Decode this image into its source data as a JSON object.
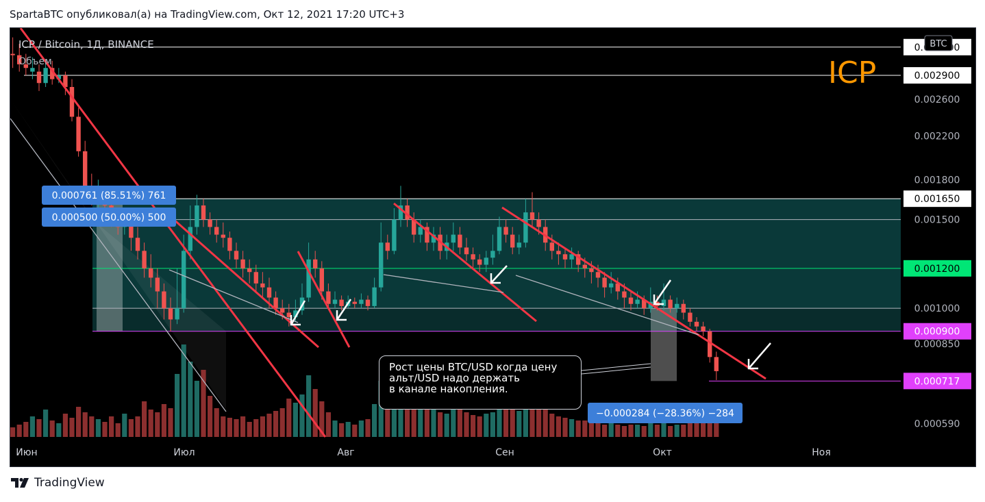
{
  "header": {
    "text": "SpartaBTC опубликовал(а) на TradingView.com, Окт 12, 2021 17:20 UTC+3"
  },
  "footer": {
    "brand": "TradingView",
    "logo_icon": "tradingview-logo-icon"
  },
  "chart": {
    "symbol_line": "ICP / Bitcoin, 1Д, BINANCE",
    "volume_label": "Объем",
    "currency_badge": "BTC",
    "big_label": "ICP",
    "measure_up": [
      "0.000761 (85.51%) 761",
      "0.000500 (50.00%) 500"
    ],
    "measure_down": "−0.000284 (−28.36%) −284",
    "annotation_lines": [
      "Рост цены BTC/USD когда цену",
      "альт/USD надо держать",
      "в канале накопления."
    ]
  },
  "colors": {
    "background": "#000000",
    "up_candle": "#26a69a",
    "down_candle": "#ef5350",
    "trendline": "#f23645",
    "channel_fill": "#0c3b3b",
    "magenta": "#e040fb",
    "green_label": "#00e676",
    "orange_text": "#ff9800",
    "measure_box": "#3d7fd9"
  },
  "chart_data": {
    "type": "candlestick",
    "title": "ICP / Bitcoin, 1Д, BINANCE",
    "x_ticks": [
      "Июн",
      "Июл",
      "Авг",
      "Сен",
      "Окт",
      "Ноя"
    ],
    "y_ticks": [
      "0.003300",
      "0.002900",
      "0.002600",
      "0.002200",
      "0.001800",
      "0.001650",
      "0.001500",
      "0.001200",
      "0.001000",
      "0.000900",
      "0.000850",
      "0.000717",
      "0.000590"
    ],
    "y_scale": "log",
    "ylim": [
      0.00055,
      0.0036
    ],
    "key_levels": [
      {
        "value": 0.0033,
        "label": "0.003300",
        "style": "white"
      },
      {
        "value": 0.0029,
        "label": "0.002900",
        "style": "white"
      },
      {
        "value": 0.00165,
        "label": "0.001650",
        "style": "white"
      },
      {
        "value": 0.0015,
        "label": "",
        "style": "grey"
      },
      {
        "value": 0.0012,
        "label": "0.001200",
        "style": "green"
      },
      {
        "value": 0.001,
        "label": "",
        "style": "grey"
      },
      {
        "value": 0.0009,
        "label": "0.000900",
        "style": "magenta"
      },
      {
        "value": 0.000717,
        "label": "0.000717",
        "style": "magenta"
      }
    ],
    "candles": [
      [
        1,
        0.0032,
        0.00318,
        0.00345,
        0.003,
        0
      ],
      [
        2,
        0.00318,
        0.00305,
        0.00335,
        0.00295,
        0
      ],
      [
        3,
        0.00305,
        0.003,
        0.0032,
        0.0029,
        0
      ],
      [
        4,
        0.003,
        0.00295,
        0.00315,
        0.00285,
        1
      ],
      [
        5,
        0.00295,
        0.0028,
        0.00305,
        0.0027,
        0
      ],
      [
        6,
        0.0028,
        0.003,
        0.0031,
        0.00275,
        1
      ],
      [
        7,
        0.003,
        0.00285,
        0.0031,
        0.00278,
        0
      ],
      [
        8,
        0.00285,
        0.0029,
        0.003,
        0.0028,
        1
      ],
      [
        9,
        0.0029,
        0.00275,
        0.00295,
        0.00265,
        0
      ],
      [
        10,
        0.00275,
        0.0024,
        0.00285,
        0.00235,
        0
      ],
      [
        11,
        0.0024,
        0.00205,
        0.0025,
        0.002,
        0
      ],
      [
        12,
        0.00205,
        0.00175,
        0.00215,
        0.0017,
        0
      ],
      [
        13,
        0.00175,
        0.00165,
        0.00185,
        0.0016,
        0
      ],
      [
        14,
        0.00165,
        0.0017,
        0.0018,
        0.00158,
        1
      ],
      [
        15,
        0.0017,
        0.0016,
        0.00175,
        0.0015,
        0
      ],
      [
        16,
        0.0016,
        0.0015,
        0.0017,
        0.00145,
        0
      ],
      [
        17,
        0.0015,
        0.00145,
        0.00158,
        0.0014,
        0
      ],
      [
        18,
        0.00145,
        0.00148,
        0.00155,
        0.0014,
        1
      ],
      [
        19,
        0.00148,
        0.00138,
        0.00152,
        0.0013,
        0
      ],
      [
        20,
        0.00138,
        0.0013,
        0.00145,
        0.00125,
        0
      ],
      [
        21,
        0.0013,
        0.0012,
        0.00135,
        0.00115,
        0
      ],
      [
        22,
        0.0012,
        0.00115,
        0.00128,
        0.0011,
        0
      ],
      [
        23,
        0.00115,
        0.00108,
        0.0012,
        0.001,
        0
      ],
      [
        24,
        0.00108,
        0.001,
        0.00112,
        0.00095,
        0
      ],
      [
        25,
        0.001,
        0.00095,
        0.00105,
        0.0009,
        0
      ],
      [
        26,
        0.00095,
        0.001,
        0.0012,
        0.00093,
        1
      ],
      [
        27,
        0.001,
        0.0013,
        0.0014,
        0.00098,
        1
      ],
      [
        28,
        0.0013,
        0.00145,
        0.0016,
        0.00125,
        1
      ],
      [
        29,
        0.00145,
        0.0016,
        0.00168,
        0.0014,
        1
      ],
      [
        30,
        0.0016,
        0.0015,
        0.00165,
        0.00145,
        0
      ],
      [
        31,
        0.0015,
        0.00145,
        0.00155,
        0.0014,
        0
      ],
      [
        32,
        0.00145,
        0.0014,
        0.0015,
        0.00135,
        0
      ],
      [
        33,
        0.0014,
        0.00138,
        0.00148,
        0.00132,
        0
      ],
      [
        34,
        0.00138,
        0.0013,
        0.00142,
        0.00125,
        0
      ],
      [
        35,
        0.0013,
        0.00125,
        0.00135,
        0.0012,
        0
      ],
      [
        36,
        0.00125,
        0.0012,
        0.0013,
        0.00115,
        0
      ],
      [
        37,
        0.0012,
        0.00118,
        0.00125,
        0.00112,
        0
      ],
      [
        38,
        0.00118,
        0.00112,
        0.00122,
        0.00108,
        0
      ],
      [
        39,
        0.00112,
        0.0011,
        0.00118,
        0.00105,
        0
      ],
      [
        40,
        0.0011,
        0.00105,
        0.00115,
        0.001,
        0
      ],
      [
        41,
        0.00105,
        0.001,
        0.00108,
        0.00097,
        0
      ],
      [
        42,
        0.001,
        0.00098,
        0.00104,
        0.00095,
        0
      ],
      [
        43,
        0.00098,
        0.00096,
        0.00102,
        0.00092,
        0
      ],
      [
        44,
        0.00096,
        0.00099,
        0.00104,
        0.00094,
        1
      ],
      [
        45,
        0.00099,
        0.00105,
        0.00112,
        0.00097,
        1
      ],
      [
        46,
        0.00105,
        0.00125,
        0.00135,
        0.00103,
        1
      ],
      [
        47,
        0.00125,
        0.0012,
        0.0013,
        0.00115,
        0
      ],
      [
        48,
        0.0012,
        0.00108,
        0.00124,
        0.00104,
        0
      ],
      [
        49,
        0.00108,
        0.00102,
        0.00112,
        0.001,
        0
      ],
      [
        50,
        0.00102,
        0.00104,
        0.00108,
        0.001,
        1
      ],
      [
        51,
        0.00104,
        0.00101,
        0.00106,
        0.00099,
        0
      ],
      [
        52,
        0.00101,
        0.00103,
        0.00106,
        0.001,
        1
      ],
      [
        53,
        0.00103,
        0.00102,
        0.00105,
        0.001,
        0
      ],
      [
        54,
        0.00102,
        0.00104,
        0.00107,
        0.001,
        1
      ],
      [
        55,
        0.00104,
        0.00101,
        0.00106,
        0.00099,
        0
      ],
      [
        56,
        0.00101,
        0.0011,
        0.00115,
        0.001,
        1
      ],
      [
        57,
        0.0011,
        0.00135,
        0.00148,
        0.00108,
        1
      ],
      [
        58,
        0.00135,
        0.0013,
        0.0014,
        0.00125,
        0
      ],
      [
        59,
        0.0013,
        0.0015,
        0.00158,
        0.00128,
        1
      ],
      [
        60,
        0.0015,
        0.0016,
        0.00175,
        0.00145,
        1
      ],
      [
        61,
        0.0016,
        0.0015,
        0.00165,
        0.00145,
        0
      ],
      [
        62,
        0.0015,
        0.0014,
        0.00155,
        0.00135,
        0
      ],
      [
        63,
        0.0014,
        0.00145,
        0.0015,
        0.00135,
        1
      ],
      [
        64,
        0.00145,
        0.00135,
        0.00148,
        0.0013,
        0
      ],
      [
        65,
        0.00135,
        0.0014,
        0.00145,
        0.0013,
        1
      ],
      [
        66,
        0.0014,
        0.0013,
        0.00145,
        0.00125,
        0
      ],
      [
        67,
        0.0013,
        0.00135,
        0.0014,
        0.00125,
        1
      ],
      [
        68,
        0.00135,
        0.0014,
        0.00148,
        0.0013,
        1
      ],
      [
        69,
        0.0014,
        0.00132,
        0.00145,
        0.00128,
        0
      ],
      [
        70,
        0.00132,
        0.00128,
        0.00138,
        0.00124,
        0
      ],
      [
        71,
        0.00128,
        0.00125,
        0.00132,
        0.0012,
        0
      ],
      [
        72,
        0.00125,
        0.00122,
        0.00128,
        0.00118,
        0
      ],
      [
        73,
        0.00122,
        0.00126,
        0.0013,
        0.00118,
        1
      ],
      [
        74,
        0.00126,
        0.0013,
        0.0014,
        0.00122,
        1
      ],
      [
        75,
        0.0013,
        0.00145,
        0.00152,
        0.00128,
        1
      ],
      [
        76,
        0.00145,
        0.0014,
        0.0015,
        0.00135,
        0
      ],
      [
        77,
        0.0014,
        0.00132,
        0.00145,
        0.00128,
        0
      ],
      [
        78,
        0.00132,
        0.00135,
        0.0014,
        0.00128,
        1
      ],
      [
        79,
        0.00135,
        0.00155,
        0.00165,
        0.00132,
        1
      ],
      [
        80,
        0.00155,
        0.0015,
        0.0017,
        0.00145,
        0
      ],
      [
        81,
        0.0015,
        0.00145,
        0.00155,
        0.0014,
        0
      ],
      [
        82,
        0.00145,
        0.00135,
        0.0015,
        0.0013,
        0
      ],
      [
        83,
        0.00135,
        0.0013,
        0.0014,
        0.00125,
        0
      ],
      [
        84,
        0.0013,
        0.00128,
        0.00135,
        0.00122,
        0
      ],
      [
        85,
        0.00128,
        0.00125,
        0.00132,
        0.0012,
        0
      ],
      [
        86,
        0.00125,
        0.00128,
        0.00132,
        0.0012,
        1
      ],
      [
        87,
        0.00128,
        0.00122,
        0.0013,
        0.00118,
        0
      ],
      [
        88,
        0.00122,
        0.0012,
        0.00126,
        0.00115,
        0
      ],
      [
        89,
        0.0012,
        0.00118,
        0.00124,
        0.00112,
        0
      ],
      [
        90,
        0.00118,
        0.00115,
        0.00122,
        0.0011,
        0
      ],
      [
        91,
        0.00115,
        0.0011,
        0.00118,
        0.00105,
        0
      ],
      [
        92,
        0.0011,
        0.00112,
        0.00118,
        0.00107,
        1
      ],
      [
        93,
        0.00112,
        0.00108,
        0.00115,
        0.00104,
        0
      ],
      [
        94,
        0.00108,
        0.00105,
        0.00112,
        0.001,
        0
      ],
      [
        95,
        0.00105,
        0.00102,
        0.00108,
        0.00099,
        0
      ],
      [
        96,
        0.00102,
        0.00104,
        0.00108,
        0.001,
        1
      ],
      [
        97,
        0.00104,
        0.001,
        0.00106,
        0.00097,
        0
      ],
      [
        98,
        0.001,
        0.00103,
        0.0011,
        0.00098,
        1
      ],
      [
        99,
        0.00103,
        0.00101,
        0.00106,
        0.00099,
        0
      ],
      [
        100,
        0.00101,
        0.00104,
        0.00112,
        0.00099,
        1
      ],
      [
        101,
        0.00104,
        0.001,
        0.00106,
        0.00098,
        0
      ],
      [
        102,
        0.001,
        0.00102,
        0.00105,
        0.00098,
        1
      ],
      [
        103,
        0.00102,
        0.00098,
        0.00104,
        0.00095,
        0
      ],
      [
        104,
        0.00098,
        0.00094,
        0.001,
        0.00092,
        0
      ],
      [
        105,
        0.00094,
        0.00092,
        0.00096,
        0.0009,
        0
      ],
      [
        106,
        0.00092,
        0.0009,
        0.00094,
        0.00088,
        0
      ],
      [
        107,
        0.0009,
        0.0008,
        0.00091,
        0.00078,
        0
      ],
      [
        108,
        0.0008,
        0.00075,
        0.00082,
        0.00072,
        0
      ]
    ],
    "volume": [
      [
        1,
        14,
        0
      ],
      [
        2,
        18,
        0
      ],
      [
        3,
        22,
        0
      ],
      [
        4,
        30,
        1
      ],
      [
        5,
        26,
        0
      ],
      [
        6,
        40,
        1
      ],
      [
        7,
        24,
        0
      ],
      [
        8,
        20,
        1
      ],
      [
        9,
        34,
        0
      ],
      [
        10,
        28,
        0
      ],
      [
        11,
        44,
        0
      ],
      [
        12,
        36,
        0
      ],
      [
        13,
        30,
        0
      ],
      [
        14,
        26,
        1
      ],
      [
        15,
        22,
        0
      ],
      [
        16,
        30,
        0
      ],
      [
        17,
        20,
        0
      ],
      [
        18,
        34,
        1
      ],
      [
        19,
        26,
        0
      ],
      [
        20,
        30,
        0
      ],
      [
        21,
        52,
        0
      ],
      [
        22,
        40,
        0
      ],
      [
        23,
        36,
        0
      ],
      [
        24,
        48,
        0
      ],
      [
        25,
        42,
        0
      ],
      [
        26,
        92,
        1
      ],
      [
        27,
        135,
        1
      ],
      [
        28,
        110,
        1
      ],
      [
        29,
        82,
        1
      ],
      [
        30,
        98,
        0
      ],
      [
        31,
        60,
        0
      ],
      [
        32,
        42,
        0
      ],
      [
        33,
        30,
        0
      ],
      [
        34,
        28,
        0
      ],
      [
        35,
        26,
        0
      ],
      [
        36,
        30,
        0
      ],
      [
        37,
        22,
        0
      ],
      [
        38,
        26,
        0
      ],
      [
        39,
        30,
        0
      ],
      [
        40,
        34,
        0
      ],
      [
        41,
        38,
        0
      ],
      [
        42,
        42,
        0
      ],
      [
        43,
        56,
        0
      ],
      [
        44,
        50,
        1
      ],
      [
        45,
        62,
        1
      ],
      [
        46,
        90,
        1
      ],
      [
        47,
        70,
        0
      ],
      [
        48,
        52,
        0
      ],
      [
        49,
        36,
        0
      ],
      [
        50,
        24,
        1
      ],
      [
        51,
        20,
        0
      ],
      [
        52,
        22,
        1
      ],
      [
        53,
        18,
        0
      ],
      [
        54,
        24,
        1
      ],
      [
        55,
        26,
        0
      ],
      [
        56,
        48,
        1
      ],
      [
        57,
        82,
        1
      ],
      [
        58,
        58,
        0
      ],
      [
        59,
        90,
        1
      ],
      [
        60,
        110,
        1
      ],
      [
        61,
        84,
        0
      ],
      [
        62,
        64,
        0
      ],
      [
        63,
        50,
        1
      ],
      [
        64,
        42,
        0
      ],
      [
        65,
        40,
        1
      ],
      [
        66,
        36,
        0
      ],
      [
        67,
        34,
        1
      ],
      [
        68,
        44,
        1
      ],
      [
        69,
        40,
        0
      ],
      [
        70,
        36,
        0
      ],
      [
        71,
        32,
        0
      ],
      [
        72,
        30,
        0
      ],
      [
        73,
        34,
        1
      ],
      [
        74,
        36,
        1
      ],
      [
        75,
        62,
        1
      ],
      [
        76,
        46,
        0
      ],
      [
        77,
        40,
        0
      ],
      [
        78,
        38,
        1
      ],
      [
        79,
        64,
        1
      ],
      [
        80,
        58,
        0
      ],
      [
        81,
        46,
        0
      ],
      [
        82,
        40,
        0
      ],
      [
        83,
        34,
        0
      ],
      [
        84,
        30,
        0
      ],
      [
        85,
        28,
        0
      ],
      [
        86,
        26,
        1
      ],
      [
        87,
        24,
        0
      ],
      [
        88,
        24,
        0
      ],
      [
        89,
        22,
        0
      ],
      [
        90,
        20,
        0
      ],
      [
        91,
        18,
        0
      ],
      [
        92,
        20,
        1
      ],
      [
        93,
        18,
        0
      ],
      [
        94,
        16,
        0
      ],
      [
        95,
        18,
        0
      ],
      [
        96,
        18,
        1
      ],
      [
        97,
        16,
        0
      ],
      [
        98,
        20,
        1
      ],
      [
        99,
        18,
        0
      ],
      [
        100,
        22,
        1
      ],
      [
        101,
        16,
        0
      ],
      [
        102,
        18,
        1
      ],
      [
        103,
        18,
        0
      ],
      [
        104,
        20,
        0
      ],
      [
        105,
        22,
        0
      ],
      [
        106,
        24,
        0
      ],
      [
        107,
        28,
        0
      ],
      [
        108,
        30,
        0
      ]
    ]
  }
}
